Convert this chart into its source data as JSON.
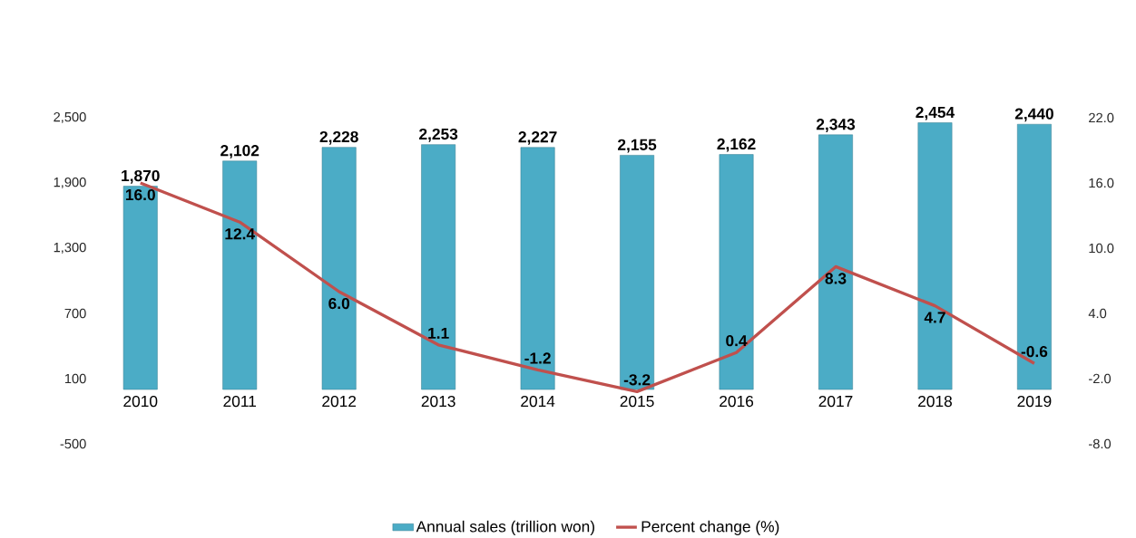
{
  "chart_data": {
    "type": "bar",
    "categories": [
      "2010",
      "2011",
      "2012",
      "2013",
      "2014",
      "2015",
      "2016",
      "2017",
      "2018",
      "2019"
    ],
    "series": [
      {
        "name": "Annual sales (trillion won)",
        "color": "#4bacc6",
        "values": [
          1870,
          2102,
          2228,
          2253,
          2227,
          2155,
          2162,
          2343,
          2454,
          2440
        ],
        "value_labels": [
          "1,870",
          "2,102",
          "2,228",
          "2,253",
          "2,227",
          "2,155",
          "2,162",
          "2,343",
          "2,454",
          "2,440"
        ]
      },
      {
        "name": "Percent change (%)",
        "type": "line",
        "axis": "y2",
        "color": "#c0504d",
        "values": [
          16.0,
          12.4,
          6.0,
          1.1,
          -1.2,
          -3.2,
          0.4,
          8.3,
          4.7,
          -0.6
        ],
        "value_labels": [
          "16.0",
          "12.4",
          "6.0",
          "1.1",
          "-1.2",
          "-3.2",
          "0.4",
          "8.3",
          "4.7",
          "-0.6"
        ]
      }
    ],
    "ylim": [
      -500,
      2500
    ],
    "yticks": [
      {
        "value": -500,
        "label": "-500"
      },
      {
        "value": 100,
        "label": "100"
      },
      {
        "value": 700,
        "label": "700"
      },
      {
        "value": 1300,
        "label": "1,300"
      },
      {
        "value": 1900,
        "label": "1,900"
      },
      {
        "value": 2500,
        "label": "2,500"
      }
    ],
    "y2lim": [
      -8,
      22
    ],
    "y2ticks": [
      {
        "value": -8,
        "label": "-8.0"
      },
      {
        "value": -2,
        "label": "-2.0"
      },
      {
        "value": 4,
        "label": "4.0"
      },
      {
        "value": 10,
        "label": "10.0"
      },
      {
        "value": 16,
        "label": "16.0"
      },
      {
        "value": 22,
        "label": "22.0"
      }
    ],
    "grid": false,
    "legend": "bottom",
    "marker": "none",
    "line_style": "solid"
  }
}
